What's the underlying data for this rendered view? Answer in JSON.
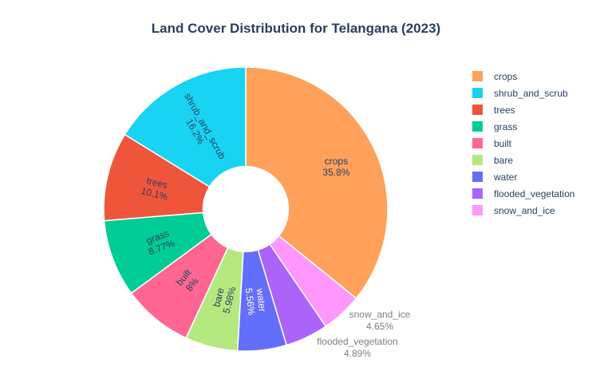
{
  "chart_data": {
    "type": "pie",
    "title": "Land Cover Distribution for Telangana (2023)",
    "hole": 0.3,
    "legend_position": "right",
    "slices": [
      {
        "label": "crops",
        "value": 35.8,
        "value_text": "35.8%",
        "color": "#FFA15A"
      },
      {
        "label": "snow_and_ice",
        "value": 4.65,
        "value_text": "4.65%",
        "color": "#FF97FF"
      },
      {
        "label": "flooded_vegetation",
        "value": 4.89,
        "value_text": "4.89%",
        "color": "#AB63FA"
      },
      {
        "label": "water",
        "value": 5.56,
        "value_text": "5.56%",
        "color": "#636EFA"
      },
      {
        "label": "bare",
        "value": 5.98,
        "value_text": "5.98%",
        "color": "#B6E880"
      },
      {
        "label": "built",
        "value": 8.0,
        "value_text": "8%",
        "color": "#FF6692"
      },
      {
        "label": "grass",
        "value": 8.77,
        "value_text": "8.77%",
        "color": "#00CC96"
      },
      {
        "label": "trees",
        "value": 10.1,
        "value_text": "10.1%",
        "color": "#EF553B"
      },
      {
        "label": "shrub_and_scrub",
        "value": 16.2,
        "value_text": "16.2%",
        "color": "#19D3F3"
      }
    ],
    "legend": [
      "crops",
      "shrub_and_scrub",
      "trees",
      "grass",
      "built",
      "bare",
      "water",
      "flooded_vegetation",
      "snow_and_ice"
    ]
  }
}
